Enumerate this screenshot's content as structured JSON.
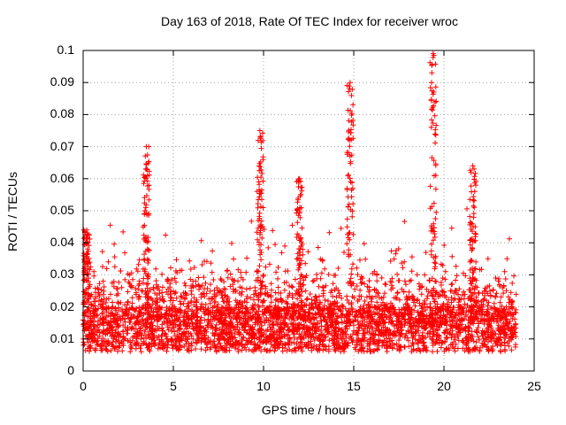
{
  "chart_data": {
    "type": "scatter",
    "title": "Day 163 of 2018, Rate Of TEC Index for receiver wroc",
    "xlabel": "GPS time / hours",
    "ylabel": "ROTI / TECUs",
    "xlim": [
      0,
      25
    ],
    "ylim": [
      0,
      0.1
    ],
    "xticks": [
      0,
      5,
      10,
      15,
      20,
      25
    ],
    "yticks": [
      0,
      0.01,
      0.02,
      0.03,
      0.04,
      0.05,
      0.06,
      0.07,
      0.08,
      0.09,
      0.1
    ],
    "xtick_labels": [
      "0",
      "5",
      "10",
      "15",
      "20",
      "25"
    ],
    "ytick_labels": [
      "0",
      "0.01",
      "0.02",
      "0.03",
      "0.04",
      "0.05",
      "0.06",
      "0.07",
      "0.08",
      "0.09",
      "0.1"
    ],
    "grid": true,
    "marker": "+",
    "color": "#ff0000",
    "data_range_x": [
      0,
      24
    ],
    "notable_peaks": [
      {
        "x": 3.5,
        "y": 0.07
      },
      {
        "x": 9.8,
        "y": 0.075
      },
      {
        "x": 14.8,
        "y": 0.09
      },
      {
        "x": 19.4,
        "y": 0.099
      },
      {
        "x": 21.6,
        "y": 0.064
      },
      {
        "x": 0.2,
        "y": 0.044
      },
      {
        "x": 12.0,
        "y": 0.06
      }
    ]
  }
}
